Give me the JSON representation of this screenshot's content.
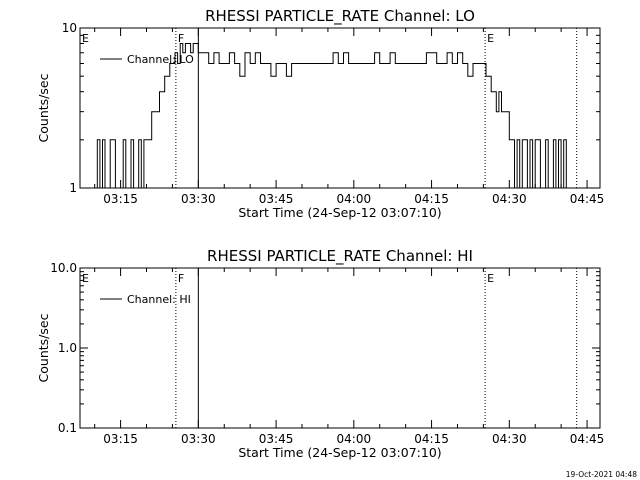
{
  "footer": {
    "timestamp": "19-Oct-2021 04:48"
  },
  "chart_data": [
    {
      "type": "line",
      "title": "RHESSI PARTICLE_RATE Channel: LO",
      "xlabel": "Start Time (24-Sep-12 03:07:10)",
      "ylabel": "Counts/sec",
      "yscale": "log",
      "xlim": [
        "03:07:10",
        "04:47:30"
      ],
      "ylim": [
        1,
        10
      ],
      "grid": false,
      "legend_position": "top-left",
      "x_ticks": [
        "03:15",
        "03:30",
        "03:45",
        "04:00",
        "04:15",
        "04:30",
        "04:45"
      ],
      "y_ticks": [
        "1",
        "10"
      ],
      "markers": [
        {
          "label": "E",
          "time": "03:07:10",
          "style": "none"
        },
        {
          "label": "F",
          "time": "03:25:40",
          "style": "dotted"
        },
        {
          "label": "",
          "time": "03:30:00",
          "style": "solid"
        },
        {
          "label": "E",
          "time": "04:25:20",
          "style": "dotted"
        },
        {
          "label": "",
          "time": "04:43:00",
          "style": "dotted"
        }
      ],
      "series": [
        {
          "name": "Channel: LO",
          "color": "#000000",
          "x": [
            "03:10:00",
            "03:10:30",
            "03:11:00",
            "03:11:30",
            "03:12:00",
            "03:12:30",
            "03:13:00",
            "03:13:30",
            "03:14:00",
            "03:14:30",
            "03:15:00",
            "03:15:30",
            "03:16:00",
            "03:16:30",
            "03:17:00",
            "03:17:30",
            "03:18:00",
            "03:18:30",
            "03:19:00",
            "03:19:30",
            "03:20:00",
            "03:20:30",
            "03:21:00",
            "03:21:30",
            "03:22:00",
            "03:22:30",
            "03:23:00",
            "03:23:30",
            "03:24:00",
            "03:24:30",
            "03:25:00",
            "03:25:30",
            "03:26:00",
            "03:26:30",
            "03:27:00",
            "03:27:30",
            "03:28:00",
            "03:28:30",
            "03:29:00",
            "03:29:30",
            "03:30:00",
            "03:31:00",
            "03:32:00",
            "03:33:00",
            "03:34:00",
            "03:35:00",
            "03:36:00",
            "03:37:00",
            "03:38:00",
            "03:39:00",
            "03:40:00",
            "03:41:00",
            "03:42:00",
            "03:43:00",
            "03:44:00",
            "03:45:00",
            "03:46:00",
            "03:47:00",
            "03:48:00",
            "03:49:00",
            "03:50:00",
            "03:51:00",
            "03:52:00",
            "03:53:00",
            "03:54:00",
            "03:55:00",
            "03:56:00",
            "03:57:00",
            "03:58:00",
            "03:59:00",
            "04:00:00",
            "04:01:00",
            "04:02:00",
            "04:03:00",
            "04:04:00",
            "04:05:00",
            "04:06:00",
            "04:07:00",
            "04:08:00",
            "04:09:00",
            "04:10:00",
            "04:11:00",
            "04:12:00",
            "04:13:00",
            "04:14:00",
            "04:15:00",
            "04:16:00",
            "04:17:00",
            "04:18:00",
            "04:19:00",
            "04:20:00",
            "04:21:00",
            "04:22:00",
            "04:23:00",
            "04:24:00",
            "04:25:00",
            "04:25:30",
            "04:26:00",
            "04:26:30",
            "04:27:00",
            "04:27:30",
            "04:28:00",
            "04:28:30",
            "04:29:00",
            "04:29:30",
            "04:30:00",
            "04:30:30",
            "04:31:00",
            "04:31:30",
            "04:32:00",
            "04:32:30",
            "04:33:00",
            "04:33:30",
            "04:34:00",
            "04:34:30",
            "04:35:00",
            "04:35:30",
            "04:36:00",
            "04:36:30",
            "04:37:00",
            "04:37:30",
            "04:38:00",
            "04:38:30",
            "04:39:00",
            "04:39:30",
            "04:40:00",
            "04:40:30",
            "04:41:00"
          ],
          "y": [
            1,
            2,
            1,
            2,
            1,
            1,
            2,
            2,
            1,
            1,
            1,
            2,
            1,
            1,
            2,
            1,
            1,
            2,
            1,
            2,
            2,
            2,
            3,
            3,
            3,
            4,
            4,
            5,
            5,
            6,
            6,
            7,
            6,
            8,
            7,
            8,
            8,
            7,
            8,
            8,
            7,
            7,
            6,
            7,
            6,
            6,
            7,
            6,
            5,
            7,
            6,
            7,
            6,
            6,
            5,
            6,
            6,
            5,
            6,
            6,
            6,
            6,
            6,
            6,
            6,
            6,
            7,
            6,
            7,
            6,
            6,
            6,
            6,
            6,
            7,
            6,
            6,
            7,
            6,
            6,
            6,
            6,
            6,
            6,
            7,
            7,
            6,
            6,
            7,
            6,
            7,
            6,
            5,
            6,
            6,
            6,
            5,
            5,
            4,
            4,
            3,
            4,
            3,
            3,
            3,
            2,
            2,
            1,
            2,
            1,
            2,
            2,
            1,
            2,
            1,
            2,
            2,
            1,
            1,
            2,
            1,
            1,
            2,
            1,
            2,
            1,
            2,
            1
          ]
        }
      ]
    },
    {
      "type": "line",
      "title": "RHESSI PARTICLE_RATE Channel: HI",
      "xlabel": "Start Time (24-Sep-12 03:07:10)",
      "ylabel": "Counts/sec",
      "yscale": "log",
      "xlim": [
        "03:07:10",
        "04:47:30"
      ],
      "ylim": [
        0.1,
        10.0
      ],
      "grid": false,
      "legend_position": "top-left",
      "x_ticks": [
        "03:15",
        "03:30",
        "03:45",
        "04:00",
        "04:15",
        "04:30",
        "04:45"
      ],
      "y_ticks": [
        "0.1",
        "1.0",
        "10.0"
      ],
      "markers": [
        {
          "label": "E",
          "time": "03:07:10",
          "style": "none"
        },
        {
          "label": "F",
          "time": "03:25:40",
          "style": "dotted"
        },
        {
          "label": "",
          "time": "03:30:00",
          "style": "solid"
        },
        {
          "label": "E",
          "time": "04:25:20",
          "style": "dotted"
        },
        {
          "label": "",
          "time": "04:43:00",
          "style": "dotted"
        }
      ],
      "series": [
        {
          "name": "Channel: HI",
          "color": "#000000",
          "x": [],
          "y": []
        }
      ]
    }
  ]
}
